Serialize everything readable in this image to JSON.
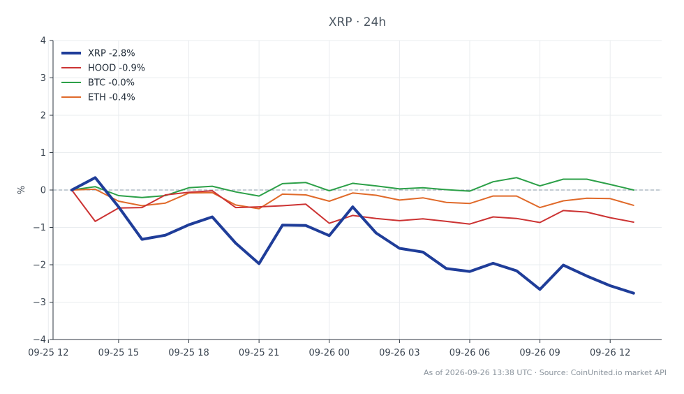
{
  "chart_data": {
    "type": "line",
    "title": "XRP · 24h",
    "ylabel": "%",
    "xlabel": "",
    "ylim": [
      -4,
      4
    ],
    "yticks": [
      -4,
      -3,
      -2,
      -1,
      0,
      1,
      2,
      3,
      4
    ],
    "ytick_labels": [
      "−4",
      "−3",
      "−2",
      "−1",
      "0",
      "1",
      "2",
      "3",
      "4"
    ],
    "xlim": [
      -0.8,
      25.2
    ],
    "xticks": [
      {
        "x": -1,
        "label": "09-25 12"
      },
      {
        "x": 2,
        "label": "09-25 15"
      },
      {
        "x": 5,
        "label": "09-25 18"
      },
      {
        "x": 8,
        "label": "09-25 21"
      },
      {
        "x": 11,
        "label": "09-26 00"
      },
      {
        "x": 14,
        "label": "09-26 03"
      },
      {
        "x": 17,
        "label": "09-26 06"
      },
      {
        "x": 20,
        "label": "09-26 09"
      },
      {
        "x": 23,
        "label": "09-26 12"
      }
    ],
    "x": [
      0,
      1,
      2,
      3,
      4,
      5,
      6,
      7,
      8,
      9,
      10,
      11,
      12,
      13,
      14,
      15,
      16,
      17,
      18,
      19,
      20,
      21,
      22,
      23,
      24
    ],
    "grid": true,
    "legend_position": "top-left",
    "series": [
      {
        "name": "XRP -2.8%",
        "color": "#1f3d99",
        "width": 4,
        "values": [
          0.0,
          0.33,
          -0.45,
          -1.32,
          -1.21,
          -0.93,
          -0.72,
          -1.42,
          -1.97,
          -0.94,
          -0.95,
          -1.22,
          -0.45,
          -1.15,
          -1.56,
          -1.66,
          -2.1,
          -2.18,
          -1.96,
          -2.16,
          -2.66,
          -2.01,
          -2.3,
          -2.56,
          -2.76
        ]
      },
      {
        "name": "HOOD -0.9%",
        "color": "#cc3333",
        "width": 2,
        "values": [
          0.0,
          -0.84,
          -0.48,
          -0.47,
          -0.13,
          -0.06,
          -0.02,
          -0.47,
          -0.45,
          -0.42,
          -0.38,
          -0.89,
          -0.68,
          -0.76,
          -0.82,
          -0.77,
          -0.84,
          -0.91,
          -0.72,
          -0.76,
          -0.87,
          -0.55,
          -0.59,
          -0.74,
          -0.86
        ]
      },
      {
        "name": "BTC -0.0%",
        "color": "#2ca048",
        "width": 2,
        "values": [
          0.0,
          0.09,
          -0.15,
          -0.2,
          -0.15,
          0.06,
          0.1,
          -0.05,
          -0.16,
          0.17,
          0.2,
          -0.02,
          0.18,
          0.11,
          0.03,
          0.06,
          0.01,
          -0.03,
          0.22,
          0.33,
          0.11,
          0.29,
          0.29,
          0.15,
          0.0
        ]
      },
      {
        "name": "ETH -0.4%",
        "color": "#e06a2a",
        "width": 2,
        "values": [
          0.0,
          0.02,
          -0.3,
          -0.42,
          -0.35,
          -0.08,
          -0.07,
          -0.4,
          -0.5,
          -0.11,
          -0.13,
          -0.3,
          -0.08,
          -0.14,
          -0.27,
          -0.21,
          -0.33,
          -0.36,
          -0.16,
          -0.16,
          -0.47,
          -0.29,
          -0.22,
          -0.23,
          -0.41
        ]
      }
    ],
    "footer": "As of 2026-09-26 13:38 UTC · Source: CoinUnited.io market API"
  }
}
